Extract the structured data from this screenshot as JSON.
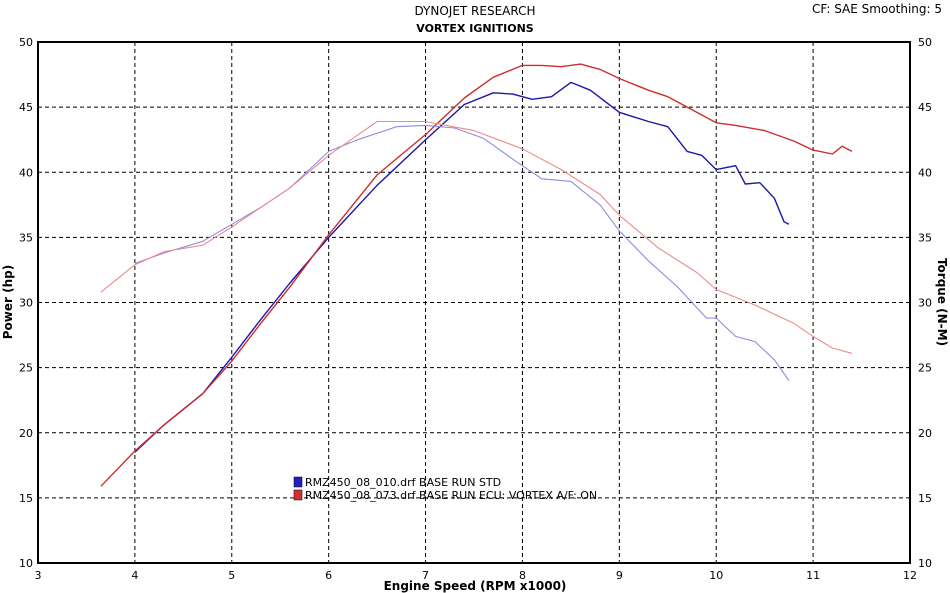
{
  "header": {
    "title": "DYNOJET RESEARCH",
    "subtitle": "VORTEX IGNITIONS",
    "corner_info": "CF: SAE  Smoothing: 5"
  },
  "chart_data": {
    "type": "line",
    "title": "DYNOJET RESEARCH",
    "subtitle": "VORTEX IGNITIONS",
    "xlabel": "Engine Speed (RPM x1000)",
    "ylabel_left": "Power (hp)",
    "ylabel_right": "Torque (N-M)",
    "xlim": [
      3,
      12
    ],
    "ylim": [
      10,
      50
    ],
    "xticks": [
      3,
      4,
      5,
      6,
      7,
      8,
      9,
      10,
      11,
      12
    ],
    "yticks": [
      10,
      15,
      20,
      25,
      30,
      35,
      40,
      45,
      50
    ],
    "grid": true,
    "legend_position": "lower-left",
    "legend": [
      {
        "label": "RMZ450_08_010.drf BASE RUN STD",
        "color": "#2020c0"
      },
      {
        "label": "RMZ450_08_073.drf BASE RUN ECU: VORTEX A/F: ON",
        "color": "#d03030"
      }
    ],
    "series": [
      {
        "name": "Power - BASE RUN STD",
        "color": "#1a1aa6",
        "x": [
          4.0,
          4.3,
          4.7,
          5.0,
          5.3,
          5.6,
          6.0,
          6.5,
          7.0,
          7.4,
          7.7,
          7.9,
          8.1,
          8.3,
          8.5,
          8.7,
          9.0,
          9.3,
          9.5,
          9.7,
          9.85,
          10.0,
          10.2,
          10.3,
          10.45,
          10.6,
          10.7,
          10.75
        ],
        "values": [
          18.5,
          20.6,
          23.0,
          25.8,
          28.7,
          31.5,
          35.0,
          39.0,
          42.5,
          45.2,
          46.1,
          46.0,
          45.6,
          45.8,
          46.9,
          46.3,
          44.6,
          43.9,
          43.5,
          41.6,
          41.3,
          40.2,
          40.5,
          39.1,
          39.2,
          38.0,
          36.2,
          36.0
        ]
      },
      {
        "name": "Power - ECU: VORTEX A/F: ON",
        "color": "#cc2e2e",
        "x": [
          3.65,
          4.0,
          4.3,
          4.7,
          5.0,
          5.3,
          5.6,
          6.0,
          6.5,
          7.0,
          7.4,
          7.7,
          8.0,
          8.2,
          8.4,
          8.6,
          8.8,
          9.0,
          9.3,
          9.5,
          9.7,
          10.0,
          10.2,
          10.5,
          10.8,
          11.0,
          11.2,
          11.3,
          11.4
        ],
        "values": [
          15.9,
          18.6,
          20.6,
          23.0,
          25.5,
          28.4,
          31.2,
          35.2,
          39.8,
          42.9,
          45.7,
          47.3,
          48.2,
          48.2,
          48.1,
          48.3,
          47.9,
          47.2,
          46.3,
          45.8,
          45.0,
          43.8,
          43.6,
          43.2,
          42.4,
          41.7,
          41.4,
          42.0,
          41.6
        ]
      },
      {
        "name": "Torque - BASE RUN STD",
        "color": "#8c8ce0",
        "x": [
          4.0,
          4.3,
          4.7,
          5.0,
          5.3,
          5.6,
          6.0,
          6.3,
          6.7,
          7.0,
          7.3,
          7.6,
          7.9,
          8.2,
          8.5,
          8.8,
          9.0,
          9.3,
          9.6,
          9.9,
          10.0,
          10.2,
          10.4,
          10.6,
          10.75
        ],
        "values": [
          33.0,
          33.8,
          34.7,
          36.0,
          37.3,
          38.8,
          41.6,
          42.5,
          43.5,
          43.6,
          43.4,
          42.6,
          41.0,
          39.5,
          39.3,
          37.5,
          35.5,
          33.2,
          31.2,
          28.8,
          28.8,
          27.4,
          27.0,
          25.6,
          24.0
        ]
      },
      {
        "name": "Torque - ECU: VORTEX A/F: ON",
        "color": "#eb8c8c",
        "x": [
          3.65,
          3.85,
          4.0,
          4.3,
          4.7,
          5.0,
          5.3,
          5.6,
          6.0,
          6.5,
          7.0,
          7.5,
          8.0,
          8.4,
          8.8,
          9.0,
          9.4,
          9.8,
          10.0,
          10.4,
          10.8,
          11.0,
          11.2,
          11.4
        ],
        "values": [
          30.8,
          32.0,
          32.9,
          33.9,
          34.4,
          35.8,
          37.3,
          38.8,
          41.3,
          43.9,
          43.9,
          43.2,
          41.8,
          40.2,
          38.3,
          36.7,
          34.2,
          32.3,
          31.0,
          29.8,
          28.4,
          27.4,
          26.5,
          26.1
        ]
      }
    ]
  }
}
